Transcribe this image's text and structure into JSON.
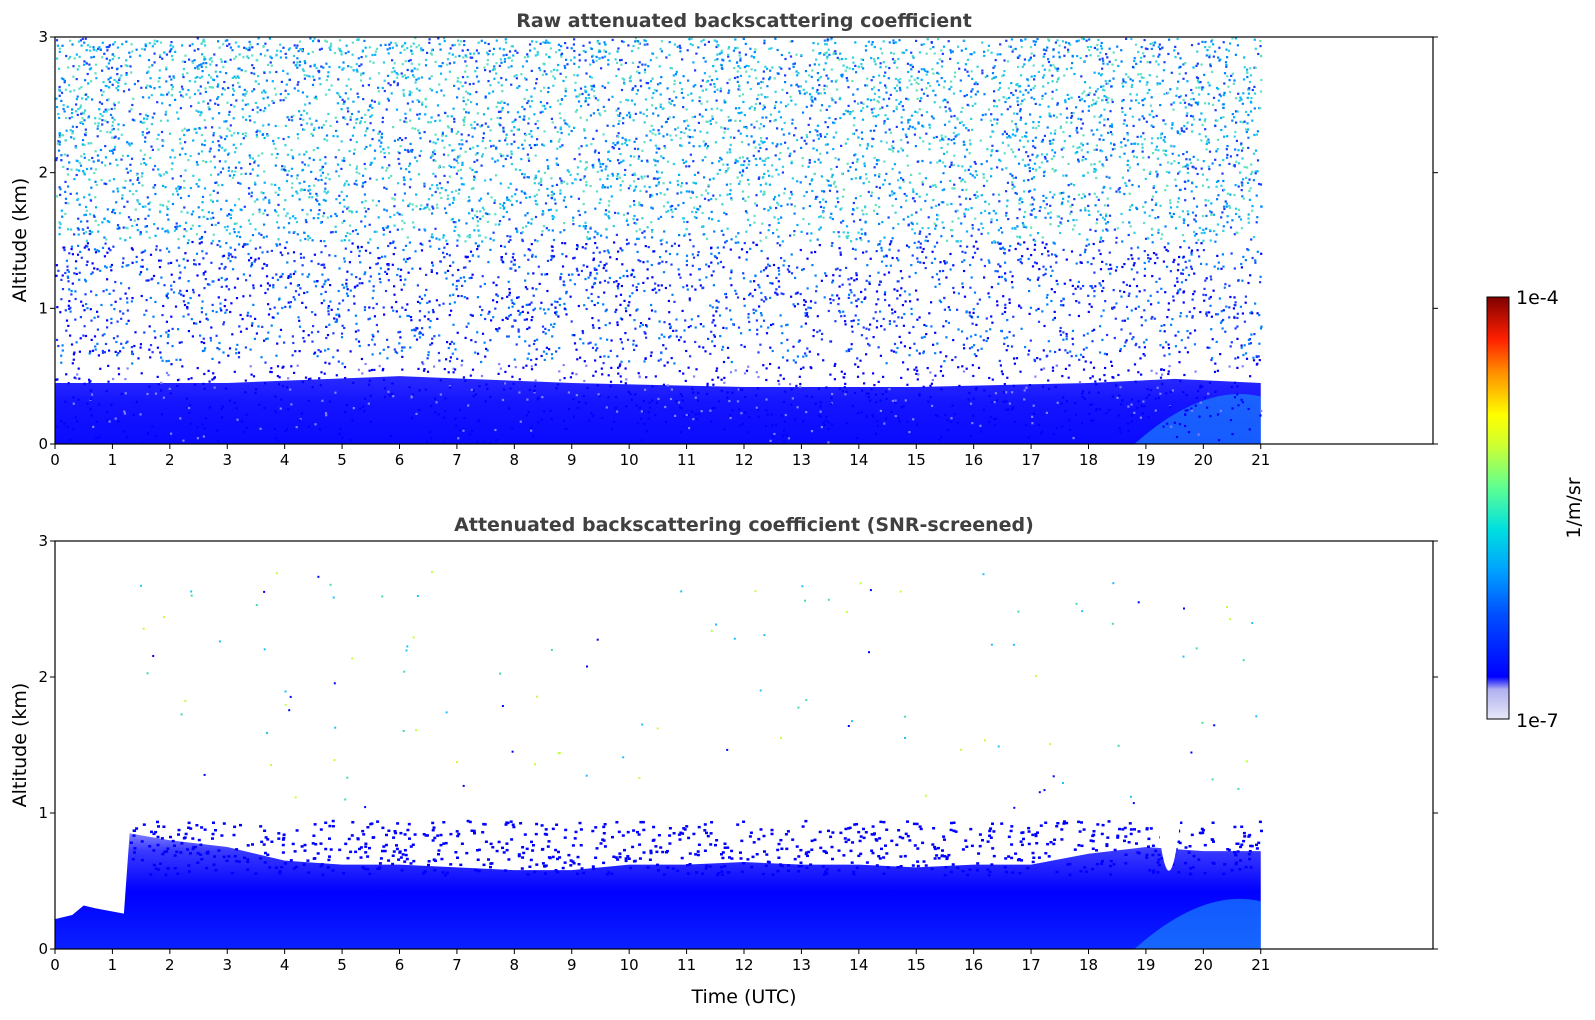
{
  "chart_data": [
    {
      "type": "heatmap",
      "title": "Raw attenuated backscattering coefficient",
      "xlabel": "",
      "ylabel": "Altitude (km)",
      "xlim": [
        0,
        24
      ],
      "ylim": [
        0,
        3
      ],
      "data_x_range": [
        0,
        21
      ],
      "x_ticks": [
        "0",
        "1",
        "2",
        "3",
        "4",
        "5",
        "6",
        "7",
        "8",
        "9",
        "10",
        "11",
        "12",
        "13",
        "14",
        "15",
        "16",
        "17",
        "18",
        "19",
        "20",
        "21"
      ],
      "y_ticks": [
        "0",
        "1",
        "2",
        "3"
      ],
      "grid": false,
      "boundary_layer_top_km": [
        {
          "x": 0,
          "y": 0.45
        },
        {
          "x": 3,
          "y": 0.45
        },
        {
          "x": 6,
          "y": 0.5
        },
        {
          "x": 9,
          "y": 0.45
        },
        {
          "x": 12,
          "y": 0.42
        },
        {
          "x": 15,
          "y": 0.42
        },
        {
          "x": 18,
          "y": 0.45
        },
        {
          "x": 19.5,
          "y": 0.48
        },
        {
          "x": 21,
          "y": 0.45
        }
      ]
    },
    {
      "type": "heatmap",
      "title": "Attenuated backscattering coefficient (SNR-screened)",
      "xlabel": "Time (UTC)",
      "ylabel": "Altitude (km)",
      "xlim": [
        0,
        24
      ],
      "ylim": [
        0,
        3
      ],
      "data_x_range": [
        0,
        21
      ],
      "x_ticks": [
        "0",
        "1",
        "2",
        "3",
        "4",
        "5",
        "6",
        "7",
        "8",
        "9",
        "10",
        "11",
        "12",
        "13",
        "14",
        "15",
        "16",
        "17",
        "18",
        "19",
        "20",
        "21"
      ],
      "y_ticks": [
        "0",
        "1",
        "2",
        "3"
      ],
      "grid": false,
      "boundary_layer_top_km": [
        {
          "x": 0,
          "y": 0.22
        },
        {
          "x": 0.3,
          "y": 0.25
        },
        {
          "x": 0.5,
          "y": 0.32
        },
        {
          "x": 0.7,
          "y": 0.3
        },
        {
          "x": 1.2,
          "y": 0.26
        },
        {
          "x": 1.3,
          "y": 0.85
        },
        {
          "x": 2,
          "y": 0.8
        },
        {
          "x": 3,
          "y": 0.75
        },
        {
          "x": 4,
          "y": 0.65
        },
        {
          "x": 5,
          "y": 0.62
        },
        {
          "x": 6,
          "y": 0.62
        },
        {
          "x": 7,
          "y": 0.6
        },
        {
          "x": 8,
          "y": 0.58
        },
        {
          "x": 9,
          "y": 0.58
        },
        {
          "x": 10,
          "y": 0.62
        },
        {
          "x": 11,
          "y": 0.62
        },
        {
          "x": 12,
          "y": 0.64
        },
        {
          "x": 13,
          "y": 0.62
        },
        {
          "x": 14,
          "y": 0.62
        },
        {
          "x": 15,
          "y": 0.6
        },
        {
          "x": 16,
          "y": 0.62
        },
        {
          "x": 17,
          "y": 0.62
        },
        {
          "x": 18,
          "y": 0.7
        },
        {
          "x": 19,
          "y": 0.75
        },
        {
          "x": 20,
          "y": 0.72
        },
        {
          "x": 21,
          "y": 0.72
        }
      ]
    }
  ],
  "colorbar": {
    "label": "1/m/sr",
    "max_label": "1e-4",
    "min_label": "1e-7",
    "scale": "log",
    "range": [
      1e-07,
      0.0001
    ],
    "colors": [
      "#e8e8f8",
      "#c0c0f0",
      "#0000ff",
      "#0060ff",
      "#00c0ff",
      "#40ffc0",
      "#c0ff40",
      "#ffff00",
      "#ff8000",
      "#ff2000",
      "#800000"
    ]
  }
}
